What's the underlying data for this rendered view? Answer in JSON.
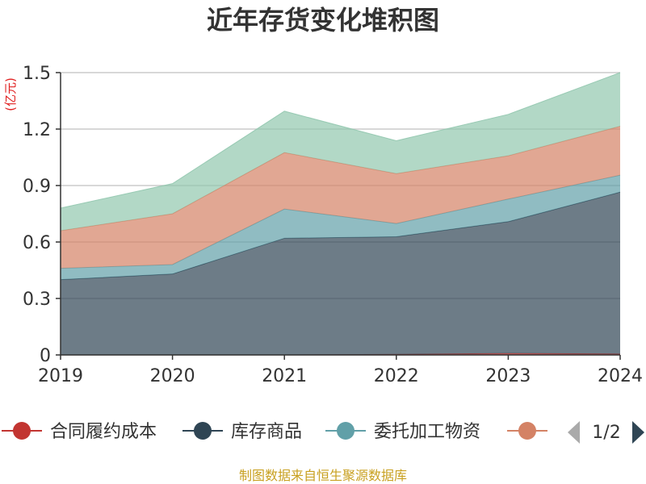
{
  "chart_data": {
    "type": "area",
    "stacked": true,
    "title": "近年存货变化堆积图",
    "ylabel": "(亿元)",
    "x": [
      "2019",
      "2020",
      "2021",
      "2022",
      "2023",
      "2024"
    ],
    "y_ticks": [
      "0",
      "0.3",
      "0.6",
      "0.9",
      "1.2",
      "1.5"
    ],
    "ylim": [
      0,
      1.5
    ],
    "grid": true,
    "series": [
      {
        "name": "合同履约成本",
        "color": "#c23531",
        "values": [
          0,
          0,
          0,
          0.003,
          0.008,
          0.005
        ]
      },
      {
        "name": "库存商品",
        "color": "#2f4554",
        "values": [
          0.4,
          0.43,
          0.62,
          0.625,
          0.7,
          0.86
        ]
      },
      {
        "name": "委托加工物资",
        "color": "#61a0a8",
        "values": [
          0.06,
          0.05,
          0.155,
          0.07,
          0.12,
          0.09
        ]
      },
      {
        "name": "",
        "color": "#d48265",
        "values": [
          0.2,
          0.27,
          0.3,
          0.265,
          0.23,
          0.26
        ]
      },
      {
        "name": "",
        "color": "#91c7ae",
        "values": [
          0.12,
          0.16,
          0.22,
          0.175,
          0.22,
          0.285
        ]
      }
    ],
    "legend_position": "bottom"
  },
  "legend": {
    "pager": "1/2",
    "prev_icon": "triangle-left-icon",
    "next_icon": "triangle-right-icon"
  },
  "source_text": "制图数据来自恒生聚源数据库"
}
